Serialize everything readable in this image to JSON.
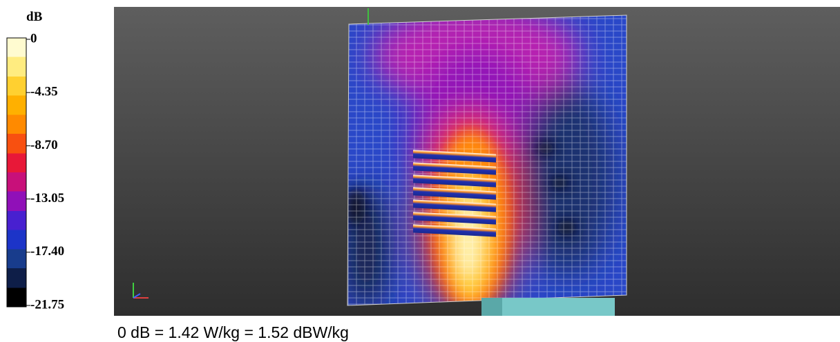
{
  "legend": {
    "unit": "dB",
    "ticks": [
      "0",
      "-4.35",
      "-8.70",
      "-13.05",
      "-17.40",
      "-21.75"
    ]
  },
  "caption": "0 dB = 1.42 W/kg = 1.52 dBW/kg"
}
